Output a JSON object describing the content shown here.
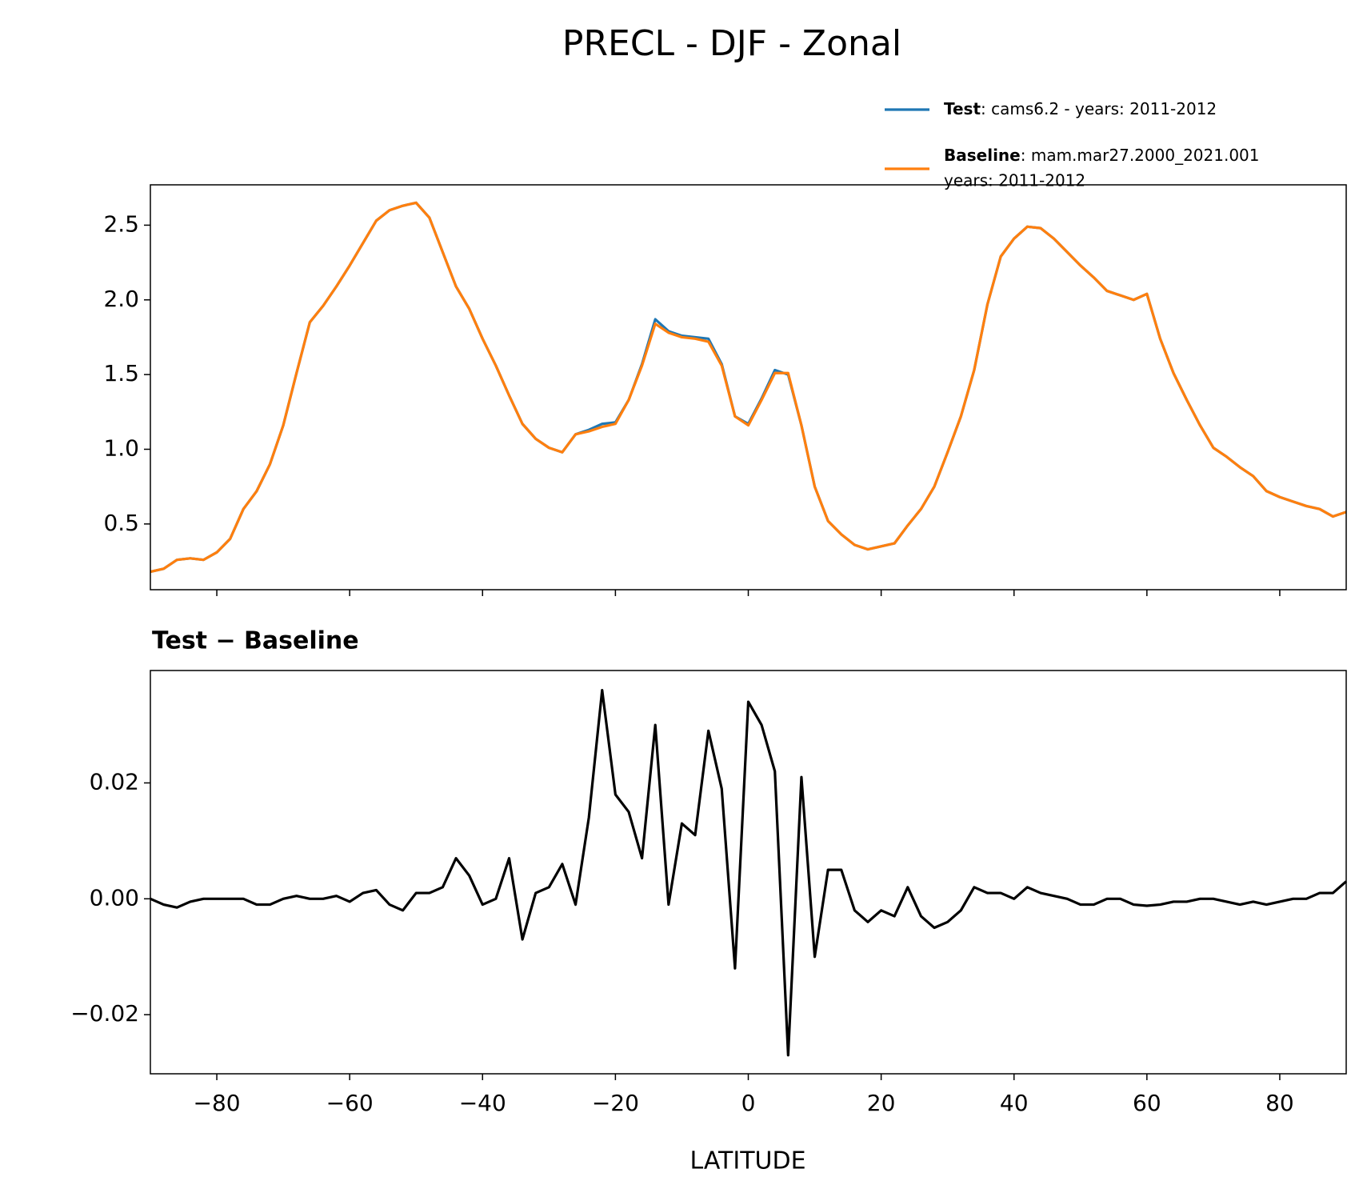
{
  "chart_data": [
    {
      "type": "line",
      "title": "PRECL - DJF - Zonal",
      "x": [
        -90,
        -88,
        -86,
        -84,
        -82,
        -80,
        -78,
        -76,
        -74,
        -72,
        -70,
        -68,
        -66,
        -64,
        -62,
        -60,
        -58,
        -56,
        -54,
        -52,
        -50,
        -48,
        -46,
        -44,
        -42,
        -40,
        -38,
        -36,
        -34,
        -32,
        -30,
        -28,
        -26,
        -24,
        -22,
        -20,
        -18,
        -16,
        -14,
        -12,
        -10,
        -8,
        -6,
        -4,
        -2,
        0,
        2,
        4,
        6,
        8,
        10,
        12,
        14,
        16,
        18,
        20,
        22,
        24,
        26,
        28,
        30,
        32,
        34,
        36,
        38,
        40,
        42,
        44,
        46,
        48,
        50,
        52,
        54,
        56,
        58,
        60,
        62,
        64,
        66,
        68,
        70,
        72,
        74,
        76,
        78,
        80,
        82,
        84,
        86,
        88,
        90
      ],
      "series": [
        {
          "name": "Test",
          "details": [
            ": cams6.2 - years: 2011-2012"
          ],
          "color": "#1f77b4",
          "values": [
            0.18,
            0.2,
            0.26,
            0.27,
            0.26,
            0.31,
            0.4,
            0.6,
            0.72,
            0.9,
            1.16,
            1.51,
            1.85,
            1.96,
            2.09,
            2.23,
            2.38,
            2.53,
            2.6,
            2.63,
            2.65,
            2.55,
            2.32,
            2.09,
            1.94,
            1.74,
            1.56,
            1.36,
            1.17,
            1.07,
            1.01,
            0.98,
            1.1,
            1.13,
            1.17,
            1.18,
            1.33,
            1.57,
            1.87,
            1.79,
            1.76,
            1.75,
            1.74,
            1.57,
            1.22,
            1.17,
            1.34,
            1.53,
            1.5,
            1.16,
            0.75,
            0.52,
            0.43,
            0.36,
            0.33,
            0.35,
            0.37,
            0.49,
            0.6,
            0.75,
            0.98,
            1.22,
            1.53,
            1.97,
            2.29,
            2.41,
            2.49,
            2.48,
            2.41,
            2.32,
            2.23,
            2.15,
            2.06,
            2.03,
            2.0,
            2.04,
            1.74,
            1.51,
            1.33,
            1.16,
            1.01,
            0.95,
            0.88,
            0.82,
            0.72,
            0.68,
            0.65,
            0.62,
            0.6,
            0.55,
            0.58
          ]
        },
        {
          "name": "Baseline",
          "details": [
            ": mam.mar27.2000_2021.001",
            "years: 2011-2012"
          ],
          "color": "#ff7f0e",
          "values": [
            0.18,
            0.2,
            0.26,
            0.27,
            0.26,
            0.31,
            0.4,
            0.6,
            0.72,
            0.9,
            1.16,
            1.51,
            1.85,
            1.96,
            2.09,
            2.23,
            2.38,
            2.53,
            2.6,
            2.63,
            2.65,
            2.55,
            2.32,
            2.09,
            1.94,
            1.74,
            1.56,
            1.36,
            1.17,
            1.07,
            1.01,
            0.98,
            1.1,
            1.12,
            1.15,
            1.17,
            1.33,
            1.56,
            1.84,
            1.78,
            1.75,
            1.74,
            1.72,
            1.56,
            1.22,
            1.16,
            1.33,
            1.51,
            1.51,
            1.16,
            0.75,
            0.52,
            0.43,
            0.36,
            0.33,
            0.35,
            0.37,
            0.49,
            0.6,
            0.75,
            0.98,
            1.22,
            1.53,
            1.97,
            2.29,
            2.41,
            2.49,
            2.48,
            2.41,
            2.32,
            2.23,
            2.15,
            2.06,
            2.03,
            2.0,
            2.04,
            1.74,
            1.51,
            1.33,
            1.16,
            1.01,
            0.95,
            0.88,
            0.82,
            0.72,
            0.68,
            0.65,
            0.62,
            0.6,
            0.55,
            0.58
          ]
        }
      ],
      "xlim": [
        -90,
        90
      ],
      "xticks": [
        -80,
        -60,
        -40,
        -20,
        0,
        20,
        40,
        60,
        80
      ],
      "ylim": [
        0.06,
        2.77
      ],
      "yticks": [
        0.5,
        {
          "value": 1,
          "label": "1.0"
        },
        1.5,
        {
          "value": 2,
          "label": "2.0"
        },
        2.5
      ],
      "legend": "upper right"
    },
    {
      "type": "line",
      "title": "Test − Baseline",
      "x_label": "LATITUDE",
      "x": [
        -90,
        -88,
        -86,
        -84,
        -82,
        -80,
        -78,
        -76,
        -74,
        -72,
        -70,
        -68,
        -66,
        -64,
        -62,
        -60,
        -58,
        -56,
        -54,
        -52,
        -50,
        -48,
        -46,
        -44,
        -42,
        -40,
        -38,
        -36,
        -34,
        -32,
        -30,
        -28,
        -26,
        -24,
        -22,
        -20,
        -18,
        -16,
        -14,
        -12,
        -10,
        -8,
        -6,
        -4,
        -2,
        0,
        2,
        4,
        6,
        8,
        10,
        12,
        14,
        16,
        18,
        20,
        22,
        24,
        26,
        28,
        30,
        32,
        34,
        36,
        38,
        40,
        42,
        44,
        46,
        48,
        50,
        52,
        54,
        56,
        58,
        60,
        62,
        64,
        66,
        68,
        70,
        72,
        74,
        76,
        78,
        80,
        82,
        84,
        86,
        88,
        90
      ],
      "series": [
        {
          "color": "#000000",
          "values": [
            0,
            -0.001,
            -0.0015,
            -0.0005,
            0,
            0,
            0,
            0,
            -0.001,
            -0.001,
            0,
            0.0005,
            0,
            0,
            0.0005,
            -0.0005,
            0.001,
            0.0015,
            -0.001,
            -0.002,
            0.001,
            0.001,
            0.002,
            0.007,
            0.004,
            -0.001,
            0,
            0.007,
            -0.007,
            0.001,
            0.002,
            0.006,
            -0.001,
            0.014,
            0.036,
            0.018,
            0.015,
            0.007,
            0.03,
            -0.001,
            0.013,
            0.011,
            0.029,
            0.019,
            -0.012,
            0.034,
            0.03,
            0.022,
            -0.027,
            0.021,
            -0.01,
            0.005,
            0.005,
            -0.002,
            -0.004,
            -0.002,
            -0.003,
            0.002,
            -0.003,
            -0.005,
            -0.004,
            -0.002,
            0.002,
            0.001,
            0.001,
            0,
            0.002,
            0.001,
            0.0005,
            0,
            -0.001,
            -0.001,
            0,
            0,
            -0.001,
            -0.0012,
            -0.001,
            -0.0005,
            -0.0005,
            0,
            0,
            -0.0005,
            -0.001,
            -0.0005,
            -0.001,
            -0.0005,
            0,
            0,
            0.001,
            0.001,
            0.003
          ]
        }
      ],
      "xlim": [
        -90,
        90
      ],
      "xticks": [
        {
          "value": -80,
          "label": "−80"
        },
        {
          "value": -60,
          "label": "−60"
        },
        {
          "value": -40,
          "label": "−40"
        },
        {
          "value": -20,
          "label": "−20"
        },
        0,
        20,
        40,
        60,
        80
      ],
      "ylim": [
        -0.0302,
        0.0394
      ],
      "yticks": [
        {
          "value": -0.02,
          "label": "−0.02"
        },
        {
          "value": 0,
          "label": "0.00"
        },
        0.02
      ]
    }
  ]
}
